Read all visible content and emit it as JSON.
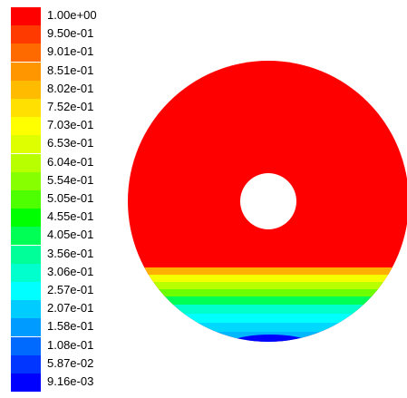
{
  "legend": {
    "labels": [
      "1.00e+00",
      "9.50e-01",
      "9.01e-01",
      "8.51e-01",
      "8.02e-01",
      "7.52e-01",
      "7.03e-01",
      "6.53e-01",
      "6.04e-01",
      "5.54e-01",
      "5.05e-01",
      "4.55e-01",
      "4.05e-01",
      "3.56e-01",
      "3.06e-01",
      "2.57e-01",
      "2.07e-01",
      "1.58e-01",
      "1.08e-01",
      "5.87e-02",
      "9.16e-03"
    ],
    "colors": [
      "#ff0000",
      "#ff3a00",
      "#ff6a00",
      "#ff9600",
      "#ffbb00",
      "#ffe000",
      "#ffff00",
      "#ddff00",
      "#b8ff00",
      "#88ff00",
      "#4dff00",
      "#00ff00",
      "#00ff55",
      "#00ff99",
      "#00ffcc",
      "#00ffff",
      "#00ccff",
      "#009bff",
      "#006aff",
      "#0036ff",
      "#0000ff"
    ]
  },
  "plot": {
    "fill_color": "#ff0000"
  }
}
